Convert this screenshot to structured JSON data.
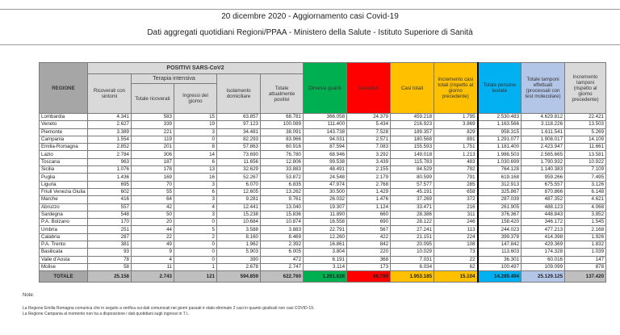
{
  "header": {
    "title": "20 dicembre 2020 - Aggiornamento casi Covid-19",
    "subtitle": "Dati aggregati quotidiani Regioni/PPAA - Ministero della Salute - Istituto Superiore di Sanità"
  },
  "table": {
    "col_regione": "REGIONE",
    "group_positivi": "POSITIVI SARS-CoV2",
    "group_terapia": "Terapia intensiva",
    "columns": [
      "Ricoverati con sintomi",
      "Totale ricoverati",
      "Ingressi del giorno",
      "Isolamento domiciliare",
      "Totale attualmente positivi",
      "Dimessi guariti",
      "Deceduti",
      "Casi totali",
      "Incremento casi totali (rispetto al giorno precedente)",
      "Totale persone testate",
      "Totale tamponi effettuati (processati con test molecolare)",
      "Incremento tamponi (rispetto al giorno precedente)"
    ],
    "rows": [
      [
        "Lombardia",
        "4.341",
        "583",
        "15",
        "63.857",
        "68.781",
        "366.058",
        "24.379",
        "459.218",
        "1.795",
        "2.530.483",
        "4.629.812",
        "22.421"
      ],
      [
        "Veneto",
        "2.627",
        "339",
        "19",
        "97.123",
        "100.089",
        "111.400",
        "5.434",
        "216.923",
        "3.869",
        "1.163.566",
        "3.118.226",
        "13.503"
      ],
      [
        "Piemonte",
        "3.389",
        "221",
        "3",
        "34.481",
        "38.091",
        "143.738",
        "7.528",
        "189.357",
        "829",
        "958.315",
        "1.611.541",
        "5.269"
      ],
      [
        "Campania",
        "1.554",
        "119",
        "0",
        "82.293",
        "83.966",
        "94.031",
        "2.571",
        "180.568",
        "891",
        "1.291.077",
        "1.908.017",
        "14.109"
      ],
      [
        "Emilia-Romagna",
        "2.852",
        "201",
        "8",
        "57.863",
        "60.916",
        "87.594",
        "7.083",
        "155.593",
        "1.751",
        "1.181.400",
        "2.423.947",
        "11.661"
      ],
      [
        "Lazio",
        "2.784",
        "306",
        "14",
        "73.690",
        "76.780",
        "68.946",
        "3.292",
        "149.018",
        "1.213",
        "1.986.503",
        "2.565.665",
        "13.581"
      ],
      [
        "Toscana",
        "963",
        "187",
        "6",
        "11.656",
        "12.806",
        "99.538",
        "3.439",
        "115.783",
        "483",
        "1.030.699",
        "1.790.932",
        "10.922"
      ],
      [
        "Sicilia",
        "1.076",
        "178",
        "13",
        "32.629",
        "33.883",
        "48.491",
        "2.155",
        "84.529",
        "792",
        "764.128",
        "1.140.383",
        "7.109"
      ],
      [
        "Puglia",
        "1.436",
        "169",
        "16",
        "52.267",
        "53.872",
        "24.548",
        "2.179",
        "80.599",
        "791",
        "619.168",
        "959.266",
        "7.495"
      ],
      [
        "Liguria",
        "695",
        "70",
        "3",
        "6.070",
        "6.835",
        "47.974",
        "2.768",
        "57.577",
        "285",
        "312.913",
        "675.557",
        "3.126"
      ],
      [
        "Friuli Venezia Giulia",
        "602",
        "55",
        "6",
        "12.605",
        "13.262",
        "30.500",
        "1.429",
        "45.191",
        "658",
        "325.867",
        "870.866",
        "6.148"
      ],
      [
        "Marche",
        "416",
        "64",
        "3",
        "9.281",
        "9.761",
        "26.032",
        "1.476",
        "37.269",
        "372",
        "287.039",
        "487.352",
        "4.621"
      ],
      [
        "Abruzzo",
        "557",
        "42",
        "4",
        "12.441",
        "13.040",
        "19.307",
        "1.124",
        "33.471",
        "216",
        "261.905",
        "488.123",
        "4.068"
      ],
      [
        "Sardegna",
        "548",
        "50",
        "3",
        "15.238",
        "15.836",
        "11.890",
        "660",
        "28.386",
        "311",
        "376.367",
        "448.843",
        "3.852"
      ],
      [
        "P.A. Bolzano",
        "170",
        "20",
        "0",
        "10.684",
        "10.874",
        "16.558",
        "690",
        "28.122",
        "246",
        "158.420",
        "346.172",
        "1.545"
      ],
      [
        "Umbria",
        "251",
        "44",
        "5",
        "3.588",
        "3.883",
        "22.791",
        "567",
        "27.241",
        "113",
        "244.023",
        "477.213",
        "2.168"
      ],
      [
        "Calabria",
        "287",
        "22",
        "2",
        "8.160",
        "8.469",
        "12.260",
        "422",
        "21.151",
        "224",
        "399.378",
        "414.398",
        "1.926"
      ],
      [
        "P.A. Trento",
        "381",
        "49",
        "0",
        "1.962",
        "2.392",
        "16.861",
        "842",
        "20.095",
        "108",
        "147.842",
        "429.369",
        "1.832"
      ],
      [
        "Basilicata",
        "93",
        "9",
        "0",
        "5.903",
        "6.005",
        "3.804",
        "220",
        "10.029",
        "73",
        "113.603",
        "174.328",
        "1.039"
      ],
      [
        "Valle d'Aosta",
        "78",
        "4",
        "0",
        "390",
        "472",
        "6.191",
        "368",
        "7.031",
        "22",
        "36.301",
        "60.016",
        "147"
      ],
      [
        "Molise",
        "58",
        "11",
        "1",
        "2.678",
        "2.747",
        "3.114",
        "173",
        "6.034",
        "62",
        "100.497",
        "109.099",
        "878"
      ]
    ],
    "total": [
      "TOTALE",
      "25.158",
      "2.743",
      "121",
      "594.859",
      "622.760",
      "1.261.626",
      "68.799",
      "1.953.185",
      "15.104",
      "14.289.494",
      "25.129.125",
      "137.420"
    ]
  },
  "colors": {
    "dimessi": "#00b050",
    "deceduti": "#ff0000",
    "casi": "#ffc000",
    "persone": "#00b0f0",
    "tamponi": "#b4c6e7",
    "header_gray": "#d9d9d9"
  },
  "notes": {
    "label": "Note:",
    "lines": [
      "La Regione Emilia Romagna comunica che in seguito a verifica sui dati comunicati nei giorni passati è stato eliminato 2 casi in quanto giudicati non casi COVID-19.",
      "La Regione Campania al momento non ha a disposizione i dati quotidiani sugli ingressi in T.I.."
    ]
  }
}
